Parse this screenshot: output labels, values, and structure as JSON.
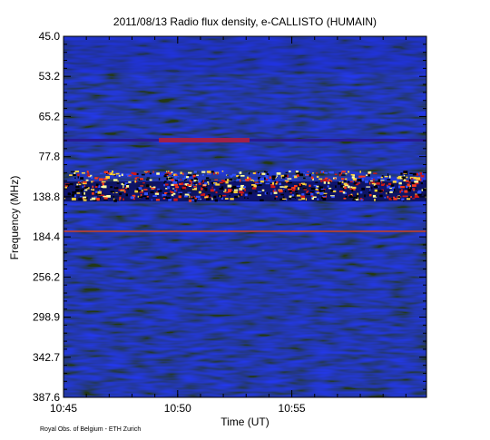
{
  "chart_data": {
    "type": "spectrogram",
    "title": "2011/08/13  Radio flux density, e-CALLISTO (HUMAIN)",
    "x_label": "Time (UT)",
    "y_label": "Frequency (MHz)",
    "xlim": [
      645,
      660.9
    ],
    "xticks": [
      {
        "value": 645,
        "label": "10:45"
      },
      {
        "value": 650,
        "label": "10:50"
      },
      {
        "value": 655,
        "label": "10:55"
      }
    ],
    "y_categories": [
      "45.0",
      "53.2",
      "65.2",
      "77.8",
      "138.8",
      "184.4",
      "256.2",
      "298.9",
      "342.7",
      "387.6"
    ],
    "footer": "Royal Obs. of Belgium - ETH Zurich"
  }
}
